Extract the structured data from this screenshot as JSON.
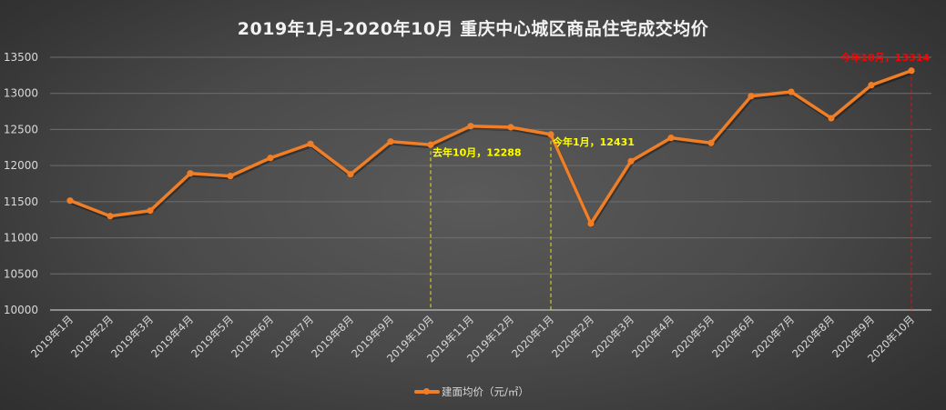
{
  "chart_data": {
    "type": "line",
    "title": "2019年1月-2020年10月 重庆中心城区商品住宅成交均价",
    "xlabel": "",
    "ylabel": "",
    "ylim": [
      10000,
      13500
    ],
    "yticks": [
      10000,
      10500,
      11000,
      11500,
      12000,
      12500,
      13000,
      13500
    ],
    "grid": true,
    "legend_position": "bottom",
    "categories": [
      "2019年1月",
      "2019年2月",
      "2019年3月",
      "2019年4月",
      "2019年5月",
      "2019年6月",
      "2019年7月",
      "2019年8月",
      "2019年9月",
      "2019年10月",
      "2019年11月",
      "2019年12月",
      "2020年1月",
      "2020年2月",
      "2020年3月",
      "2020年4月",
      "2020年5月",
      "2020年6月",
      "2020年7月",
      "2020年8月",
      "2020年9月",
      "2020年10月"
    ],
    "series": [
      {
        "name": "建面均价（元/㎡）",
        "color": "#f07e26",
        "values": [
          11515,
          11300,
          11376,
          11892,
          11855,
          12106,
          12300,
          11880,
          12333,
          12288,
          12547,
          12531,
          12431,
          11196,
          12061,
          12384,
          12313,
          12962,
          13021,
          12656,
          13114,
          13314
        ]
      }
    ],
    "annotations": [
      {
        "category_index": 9,
        "text": "去年10月，12288",
        "color": "#ffff00",
        "dashed_line": true
      },
      {
        "category_index": 12,
        "text": "今年1月，12431",
        "color": "#ffff00",
        "dashed_line": true
      },
      {
        "category_index": 21,
        "text": "今年10月，13314",
        "color": "#ff0000",
        "dashed_line": true
      }
    ]
  },
  "legend": {
    "label": "建面均价（元/㎡）"
  }
}
